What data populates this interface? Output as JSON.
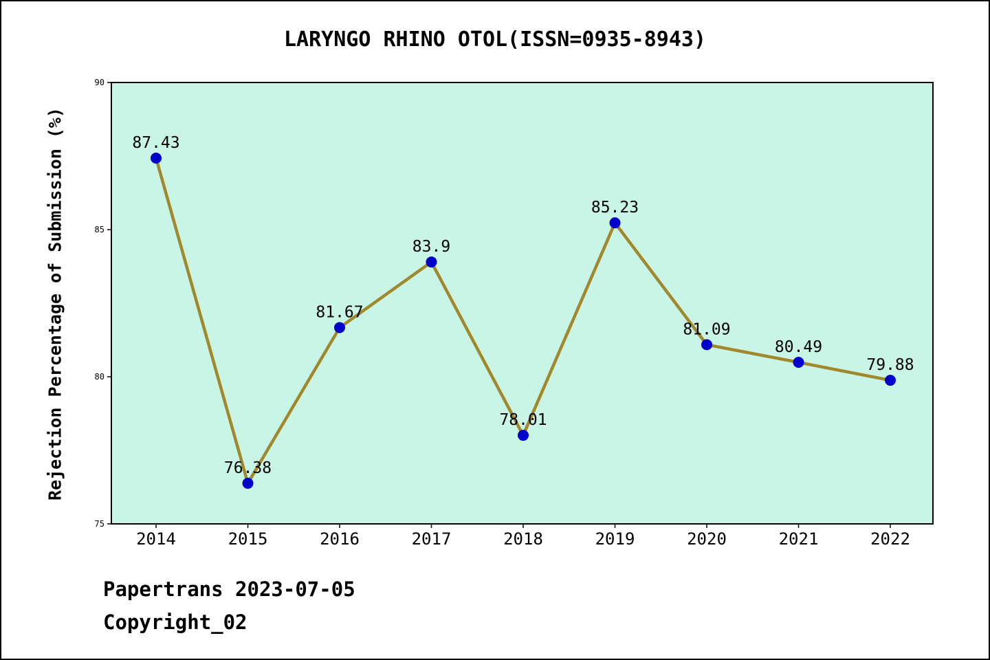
{
  "title": "LARYNGO RHINO OTOL(ISSN=0935-8943)",
  "footer": {
    "source": "Papertrans 2023-07-05",
    "copyright": "Copyright_02"
  },
  "chart_data": {
    "type": "line",
    "title": "LARYNGO RHINO OTOL(ISSN=0935-8943)",
    "categories": [
      "2014",
      "2015",
      "2016",
      "2017",
      "2018",
      "2019",
      "2020",
      "2021",
      "2022"
    ],
    "values": [
      87.43,
      76.38,
      81.67,
      83.9,
      78.01,
      85.23,
      81.09,
      80.49,
      79.88
    ],
    "point_labels": [
      "87.43",
      "76.38",
      "81.67",
      "83.9",
      "78.01",
      "85.23",
      "81.09",
      "80.49",
      "79.88"
    ],
    "xlabel": "",
    "ylabel": "Rejection Percentage of Submission (%)",
    "ylim": [
      75,
      90
    ],
    "yticks": [
      75,
      80,
      85,
      90
    ],
    "grid": false,
    "legend_position": "none",
    "colors": {
      "line": "#a2882d",
      "marker": "#0000cd",
      "plot_background": "#c8f5e5",
      "page_background": "#ffffff",
      "axis": "#000000",
      "text": "#000000"
    }
  }
}
